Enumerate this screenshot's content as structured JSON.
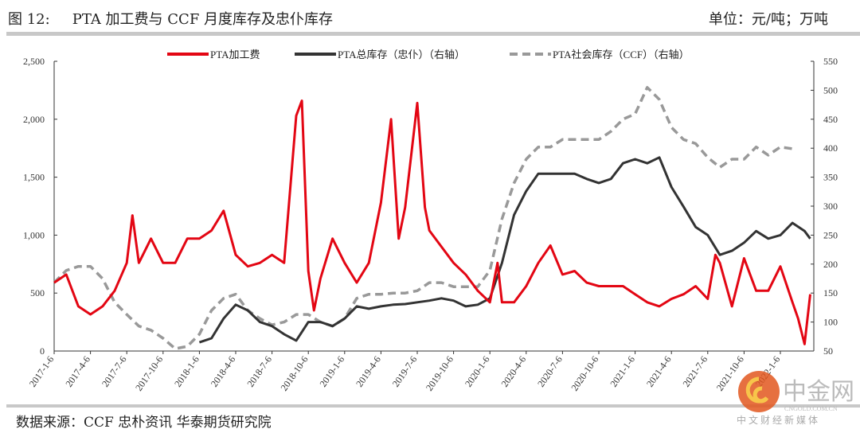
{
  "header": {
    "figure_no": "图 12:",
    "title": "PTA 加工费与 CCF 月度库存及忠仆库存",
    "unit": "单位：元/吨；万吨"
  },
  "footer": {
    "source": "数据来源：CCF 忠朴资讯 华泰期货研究院"
  },
  "watermark": {
    "name": "中金网",
    "domain": "CNGOLD.COM.CN",
    "tagline": "中 文 财 经 新 媒 体"
  },
  "chart_data": {
    "type": "line",
    "title": "",
    "legend_position": "top",
    "grid": false,
    "x_ticks": [
      "2017-1-6",
      "2017-4-6",
      "2017-7-6",
      "2017-10-6",
      "2018-1-6",
      "2018-4-6",
      "2018-7-6",
      "2018-10-6",
      "2019-1-6",
      "2019-4-6",
      "2019-7-6",
      "2019-10-6",
      "2020-1-6",
      "2020-4-6",
      "2020-7-6",
      "2020-10-6",
      "2021-1-6",
      "2021-4-6",
      "2021-7-6",
      "2021-10-6",
      "2022-1-6"
    ],
    "y_left": {
      "range": [
        0,
        2500
      ],
      "ticks": [
        "0",
        "500",
        "1,000",
        "1,500",
        "2,000",
        "2,500"
      ]
    },
    "y_right": {
      "range": [
        50,
        550
      ],
      "ticks": [
        "50",
        "100",
        "150",
        "200",
        "250",
        "300",
        "350",
        "400",
        "450",
        "500",
        "550"
      ]
    },
    "series": [
      {
        "name": "PTA加工费",
        "axis": "left",
        "color": "#e30613",
        "style": "solid",
        "x": [
          "2017-01-06",
          "2017-02-06",
          "2017-03-06",
          "2017-04-06",
          "2017-05-06",
          "2017-06-06",
          "2017-07-06",
          "2017-07-20",
          "2017-08-06",
          "2017-09-06",
          "2017-10-06",
          "2017-11-06",
          "2017-12-06",
          "2018-01-06",
          "2018-02-06",
          "2018-03-06",
          "2018-04-06",
          "2018-05-06",
          "2018-06-06",
          "2018-07-06",
          "2018-08-06",
          "2018-09-06",
          "2018-09-20",
          "2018-10-06",
          "2018-10-20",
          "2018-11-06",
          "2018-12-06",
          "2019-01-06",
          "2019-02-06",
          "2019-03-06",
          "2019-04-06",
          "2019-05-01",
          "2019-05-20",
          "2019-06-06",
          "2019-07-06",
          "2019-07-25",
          "2019-08-06",
          "2019-09-06",
          "2019-10-06",
          "2019-11-06",
          "2019-12-06",
          "2020-01-06",
          "2020-01-25",
          "2020-02-06",
          "2020-03-06",
          "2020-04-06",
          "2020-05-06",
          "2020-06-06",
          "2020-07-06",
          "2020-08-06",
          "2020-09-06",
          "2020-10-06",
          "2020-11-06",
          "2020-12-06",
          "2021-01-06",
          "2021-02-06",
          "2021-03-06",
          "2021-04-06",
          "2021-05-06",
          "2021-06-06",
          "2021-07-06",
          "2021-07-25",
          "2021-08-06",
          "2021-09-06",
          "2021-10-06",
          "2021-11-06",
          "2021-12-06",
          "2022-01-06",
          "2022-02-06",
          "2022-02-20",
          "2022-03-06",
          "2022-03-20"
        ],
        "y": [
          590,
          660,
          385,
          316,
          385,
          520,
          760,
          1170,
          760,
          970,
          760,
          760,
          970,
          970,
          1040,
          1210,
          830,
          730,
          760,
          830,
          760,
          2030,
          2160,
          690,
          350,
          625,
          970,
          760,
          590,
          760,
          1280,
          2000,
          970,
          1240,
          2140,
          1240,
          1040,
          900,
          760,
          660,
          520,
          420,
          760,
          420,
          420,
          560,
          760,
          910,
          660,
          690,
          590,
          560,
          560,
          560,
          490,
          420,
          385,
          450,
          490,
          560,
          450,
          830,
          760,
          385,
          800,
          520,
          520,
          730,
          420,
          280,
          60,
          490
        ]
      },
      {
        "name": "PTA总库存（忠仆）（右轴）",
        "axis": "right",
        "color": "#333333",
        "style": "solid",
        "x": [
          "2018-01-06",
          "2018-02-06",
          "2018-03-06",
          "2018-04-06",
          "2018-05-06",
          "2018-06-06",
          "2018-07-06",
          "2018-08-06",
          "2018-09-06",
          "2018-10-06",
          "2018-11-06",
          "2018-12-06",
          "2019-01-06",
          "2019-02-06",
          "2019-03-06",
          "2019-04-06",
          "2019-05-06",
          "2019-06-06",
          "2019-07-06",
          "2019-08-06",
          "2019-09-06",
          "2019-10-06",
          "2019-11-06",
          "2019-12-06",
          "2020-01-06",
          "2020-02-06",
          "2020-03-06",
          "2020-04-06",
          "2020-05-06",
          "2020-06-06",
          "2020-07-06",
          "2020-08-06",
          "2020-09-06",
          "2020-10-06",
          "2020-11-06",
          "2020-12-06",
          "2021-01-06",
          "2021-02-06",
          "2021-03-06",
          "2021-04-06",
          "2021-05-06",
          "2021-06-06",
          "2021-07-06",
          "2021-08-06",
          "2021-09-06",
          "2021-10-06",
          "2021-11-06",
          "2021-12-06",
          "2022-01-06",
          "2022-02-06",
          "2022-03-06",
          "2022-03-20"
        ],
        "y": [
          65,
          72,
          106,
          130,
          120,
          100,
          93,
          79,
          68,
          100,
          100,
          93,
          106,
          127,
          123,
          127,
          130,
          131,
          134,
          137,
          141,
          137,
          127,
          130,
          141,
          202,
          285,
          326,
          356,
          356,
          356,
          356,
          347,
          340,
          347,
          374,
          381,
          374,
          384,
          333,
          299,
          264,
          250,
          216,
          223,
          237,
          257,
          244,
          250,
          271,
          257,
          244
        ]
      },
      {
        "name": "PTA社会库存（CCF）（右轴）",
        "axis": "right",
        "color": "#999999",
        "style": "dashed",
        "x": [
          "2017-01-06",
          "2017-02-06",
          "2017-03-06",
          "2017-04-06",
          "2017-05-06",
          "2017-06-06",
          "2017-07-06",
          "2017-08-06",
          "2017-09-06",
          "2017-10-06",
          "2017-11-06",
          "2017-12-06",
          "2018-01-06",
          "2018-02-06",
          "2018-03-06",
          "2018-04-06",
          "2018-05-06",
          "2018-06-06",
          "2018-07-06",
          "2018-08-06",
          "2018-09-06",
          "2018-10-06",
          "2018-11-06",
          "2018-12-06",
          "2019-01-06",
          "2019-02-06",
          "2019-03-06",
          "2019-04-06",
          "2019-05-06",
          "2019-06-06",
          "2019-07-06",
          "2019-08-06",
          "2019-09-06",
          "2019-10-06",
          "2019-11-06",
          "2019-12-06",
          "2020-01-06",
          "2020-02-06",
          "2020-03-06",
          "2020-04-06",
          "2020-05-06",
          "2020-06-06",
          "2020-07-06",
          "2020-08-06",
          "2020-09-06",
          "2020-10-06",
          "2020-11-06",
          "2020-12-06",
          "2021-01-06",
          "2021-02-06",
          "2021-03-06",
          "2021-04-06",
          "2021-05-06",
          "2021-06-06",
          "2021-07-06",
          "2021-08-06",
          "2021-09-06",
          "2021-10-06",
          "2021-11-06",
          "2021-12-06",
          "2022-01-06",
          "2022-02-06"
        ],
        "y": [
          168,
          189,
          196,
          196,
          175,
          134,
          113,
          93,
          86,
          72,
          54,
          58,
          79,
          120,
          141,
          148,
          120,
          106,
          95,
          100,
          113,
          113,
          100,
          93,
          106,
          141,
          148,
          148,
          150,
          150,
          154,
          168,
          168,
          161,
          161,
          161,
          189,
          278,
          340,
          381,
          402,
          402,
          415,
          415,
          415,
          415,
          429,
          450,
          459,
          505,
          484,
          436,
          415,
          408,
          384,
          367,
          381,
          381,
          402,
          388,
          402,
          399
        ]
      }
    ]
  }
}
